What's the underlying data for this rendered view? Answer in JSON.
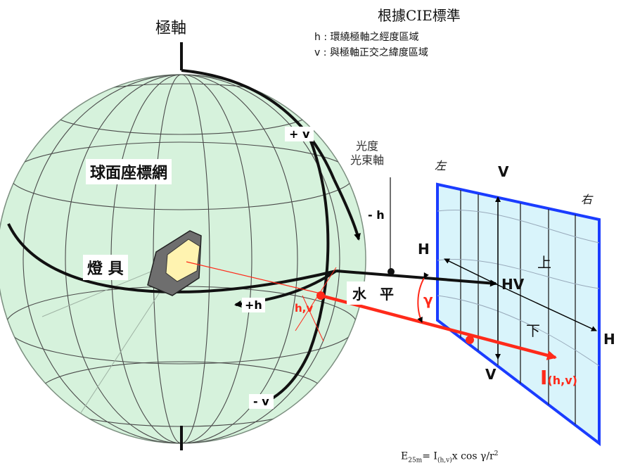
{
  "title": "根據CIE標準",
  "legend": {
    "h_line": "h : 環繞極軸之經度區域",
    "v_line": "v : 與極軸正交之緯度區域"
  },
  "labels": {
    "polar_axis": "極軸",
    "sphere_grid": "球面座標網",
    "luminaire": "燈 具",
    "beam_axis_line1": "光度",
    "beam_axis_line2": "光束軸",
    "plus_v": "+ v",
    "minus_v": "- v",
    "minus_h": "- h",
    "plus_h": "+h",
    "hv_point": "h,v",
    "horizontal": "水 平",
    "gamma": "γ",
    "left": "左",
    "right": "右",
    "up": "上",
    "down": "下",
    "V_top": "V",
    "V_bottom": "V",
    "H_left": "H",
    "H_right": "H",
    "HV": "HV",
    "intensity": "I",
    "intensity_sub": "(h,v)"
  },
  "formula": {
    "lhs": "E",
    "lhs_sub": "25m",
    "eq": "= I",
    "mid_sub": "(h,v)",
    "rhs": "x cos γ/r",
    "exp": "2"
  },
  "colors": {
    "sphere_fill": "#d6f2dc",
    "plane_fill": "#d9f4fb",
    "plane_border": "#1a3cff",
    "ray": "#ff2a1a"
  }
}
